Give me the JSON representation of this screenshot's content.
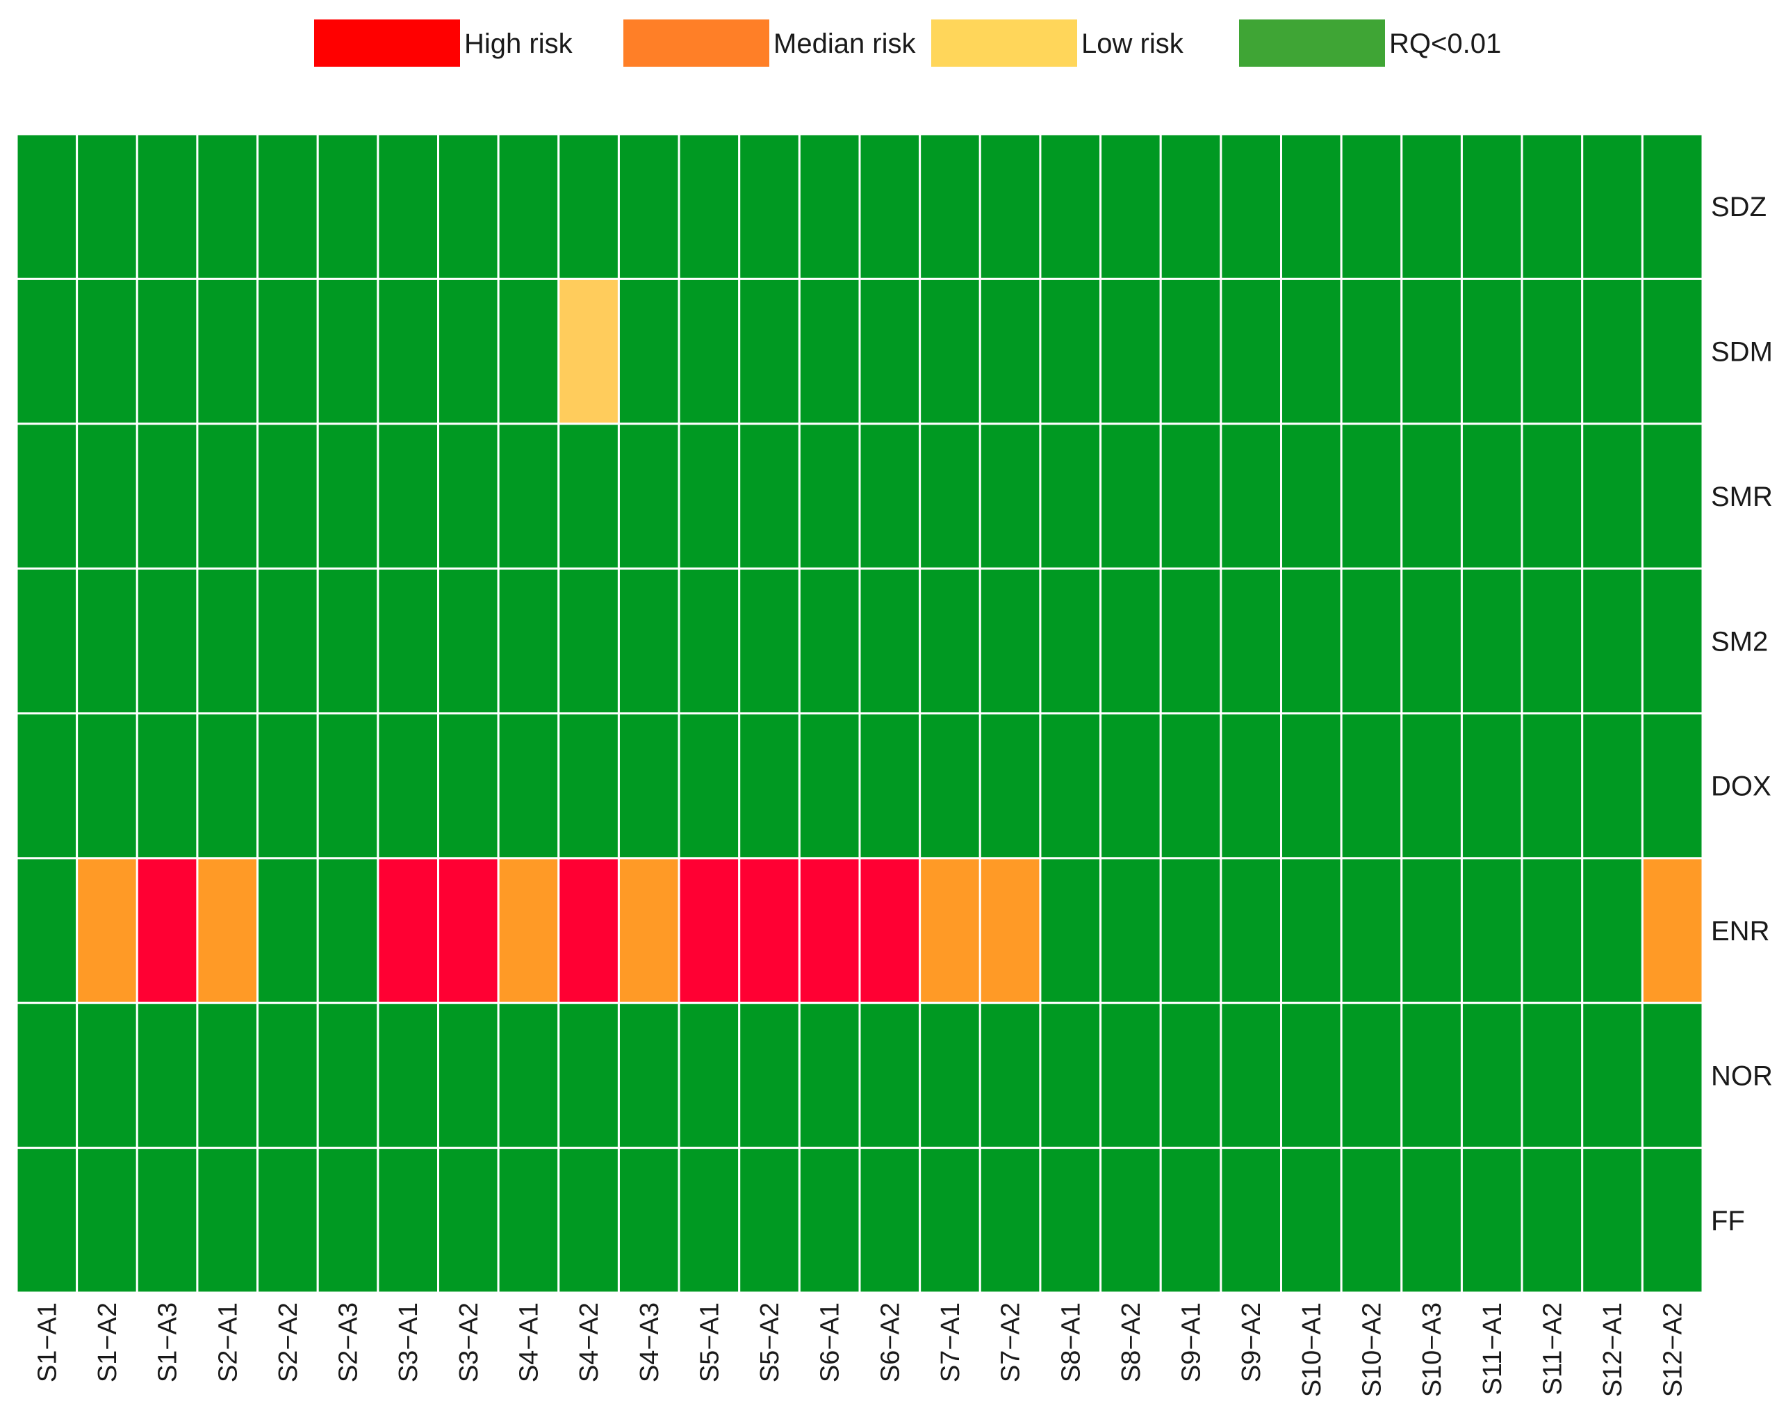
{
  "chart_data": {
    "type": "heatmap",
    "title": "",
    "xlabel": "",
    "ylabel": "",
    "legend": {
      "position": "top",
      "items": [
        {
          "key": "high",
          "label": "High risk",
          "color": "#ff0000"
        },
        {
          "key": "median",
          "label": "Median risk",
          "color": "#ff7f27"
        },
        {
          "key": "low",
          "label": "Low risk",
          "color": "#ffd65a"
        },
        {
          "key": "rq",
          "label": "RQ<0.01",
          "color": "#3fa535"
        }
      ]
    },
    "cell_colors": {
      "high": "#ff0033",
      "median": "#ff9a26",
      "low": "#ffcc5c",
      "rq": "#009922"
    },
    "grid_line_color": "#ffffff",
    "columns": [
      "S1−A1",
      "S1−A2",
      "S1−A3",
      "S2−A1",
      "S2−A2",
      "S2−A3",
      "S3−A1",
      "S3−A2",
      "S4−A1",
      "S4−A2",
      "S4−A3",
      "S5−A1",
      "S5−A2",
      "S6−A1",
      "S6−A2",
      "S7−A1",
      "S7−A2",
      "S8−A1",
      "S8−A2",
      "S9−A1",
      "S9−A2",
      "S10−A1",
      "S10−A2",
      "S10−A3",
      "S11−A1",
      "S11−A2",
      "S12−A1",
      "S12−A2"
    ],
    "rows": [
      {
        "name": "SDZ",
        "values": [
          "rq",
          "rq",
          "rq",
          "rq",
          "rq",
          "rq",
          "rq",
          "rq",
          "rq",
          "rq",
          "rq",
          "rq",
          "rq",
          "rq",
          "rq",
          "rq",
          "rq",
          "rq",
          "rq",
          "rq",
          "rq",
          "rq",
          "rq",
          "rq",
          "rq",
          "rq",
          "rq",
          "rq"
        ]
      },
      {
        "name": "SDM",
        "values": [
          "rq",
          "rq",
          "rq",
          "rq",
          "rq",
          "rq",
          "rq",
          "rq",
          "rq",
          "low",
          "rq",
          "rq",
          "rq",
          "rq",
          "rq",
          "rq",
          "rq",
          "rq",
          "rq",
          "rq",
          "rq",
          "rq",
          "rq",
          "rq",
          "rq",
          "rq",
          "rq",
          "rq"
        ]
      },
      {
        "name": "SMR",
        "values": [
          "rq",
          "rq",
          "rq",
          "rq",
          "rq",
          "rq",
          "rq",
          "rq",
          "rq",
          "rq",
          "rq",
          "rq",
          "rq",
          "rq",
          "rq",
          "rq",
          "rq",
          "rq",
          "rq",
          "rq",
          "rq",
          "rq",
          "rq",
          "rq",
          "rq",
          "rq",
          "rq",
          "rq"
        ]
      },
      {
        "name": "SM2",
        "values": [
          "rq",
          "rq",
          "rq",
          "rq",
          "rq",
          "rq",
          "rq",
          "rq",
          "rq",
          "rq",
          "rq",
          "rq",
          "rq",
          "rq",
          "rq",
          "rq",
          "rq",
          "rq",
          "rq",
          "rq",
          "rq",
          "rq",
          "rq",
          "rq",
          "rq",
          "rq",
          "rq",
          "rq"
        ]
      },
      {
        "name": "DOX",
        "values": [
          "rq",
          "rq",
          "rq",
          "rq",
          "rq",
          "rq",
          "rq",
          "rq",
          "rq",
          "rq",
          "rq",
          "rq",
          "rq",
          "rq",
          "rq",
          "rq",
          "rq",
          "rq",
          "rq",
          "rq",
          "rq",
          "rq",
          "rq",
          "rq",
          "rq",
          "rq",
          "rq",
          "rq"
        ]
      },
      {
        "name": "ENR",
        "values": [
          "rq",
          "median",
          "high",
          "median",
          "rq",
          "rq",
          "high",
          "high",
          "median",
          "high",
          "median",
          "high",
          "high",
          "high",
          "high",
          "median",
          "median",
          "rq",
          "rq",
          "rq",
          "rq",
          "rq",
          "rq",
          "rq",
          "rq",
          "rq",
          "rq",
          "median"
        ]
      },
      {
        "name": "NOR",
        "values": [
          "rq",
          "rq",
          "rq",
          "rq",
          "rq",
          "rq",
          "rq",
          "rq",
          "rq",
          "rq",
          "rq",
          "rq",
          "rq",
          "rq",
          "rq",
          "rq",
          "rq",
          "rq",
          "rq",
          "rq",
          "rq",
          "rq",
          "rq",
          "rq",
          "rq",
          "rq",
          "rq",
          "rq"
        ]
      },
      {
        "name": "FF",
        "values": [
          "rq",
          "rq",
          "rq",
          "rq",
          "rq",
          "rq",
          "rq",
          "rq",
          "rq",
          "rq",
          "rq",
          "rq",
          "rq",
          "rq",
          "rq",
          "rq",
          "rq",
          "rq",
          "rq",
          "rq",
          "rq",
          "rq",
          "rq",
          "rq",
          "rq",
          "rq",
          "rq",
          "rq"
        ]
      }
    ]
  }
}
